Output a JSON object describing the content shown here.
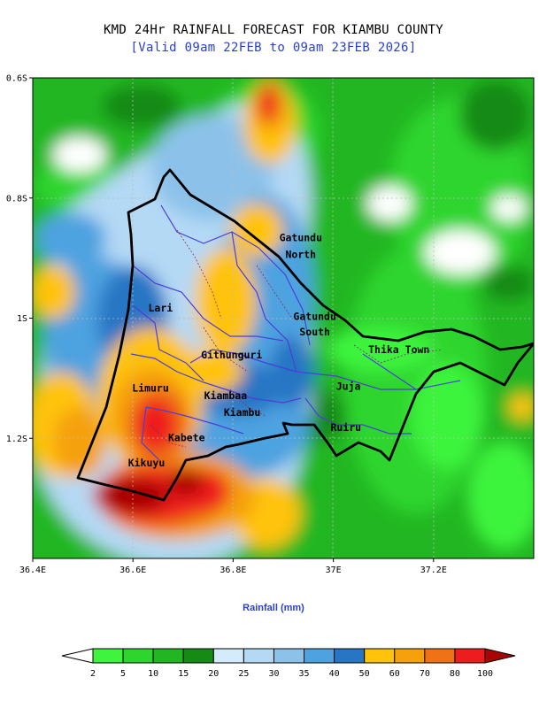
{
  "title": "KMD 24Hr RAINFALL FORECAST FOR KIAMBU COUNTY",
  "subtitle": "[Valid 09am 22FEB to 09am 23FEB 2026]",
  "legend_title": "Rainfall (mm)",
  "axes": {
    "x_ticks": [
      {
        "value": 36.4,
        "label": "36.4E"
      },
      {
        "value": 36.6,
        "label": "36.6E"
      },
      {
        "value": 36.8,
        "label": "36.8E"
      },
      {
        "value": 37.0,
        "label": "37E"
      },
      {
        "value": 37.2,
        "label": "37.2E"
      }
    ],
    "y_ticks": [
      {
        "value": -0.6,
        "label": "0.6S"
      },
      {
        "value": -0.8,
        "label": "0.8S"
      },
      {
        "value": -1.0,
        "label": "1S"
      },
      {
        "value": -1.2,
        "label": "1.2S"
      }
    ],
    "lon_range": [
      36.4,
      37.4
    ],
    "lat_range": [
      -1.4,
      -0.6
    ]
  },
  "legend": {
    "breaks": [
      "2",
      "5",
      "10",
      "15",
      "20",
      "25",
      "30",
      "35",
      "40",
      "50",
      "60",
      "70",
      "80",
      "100"
    ],
    "colors": [
      "#ffffff",
      "#3ef43e",
      "#2ed52e",
      "#22b722",
      "#158a15",
      "#d4ebfb",
      "#b4d9f5",
      "#8cc2ea",
      "#4ea2e0",
      "#2776c4",
      "#ffc30a",
      "#f5a10c",
      "#ef7216",
      "#ee1d1d",
      "#a90505"
    ]
  },
  "places": [
    {
      "name": "Gatundu",
      "lon": 36.935,
      "lat": -0.872
    },
    {
      "name": "North",
      "lon": 36.935,
      "lat": -0.9
    },
    {
      "name": "Lari",
      "lon": 36.655,
      "lat": -0.989
    },
    {
      "name": "Gatundu",
      "lon": 36.963,
      "lat": -1.003
    },
    {
      "name": "South",
      "lon": 36.963,
      "lat": -1.029
    },
    {
      "name": "Githunguri",
      "lon": 36.797,
      "lat": -1.067
    },
    {
      "name": "Thika Town",
      "lon": 37.131,
      "lat": -1.058
    },
    {
      "name": "Limuru",
      "lon": 36.635,
      "lat": -1.122
    },
    {
      "name": "Kiambaa",
      "lon": 36.785,
      "lat": -1.135
    },
    {
      "name": "Juja",
      "lon": 37.03,
      "lat": -1.119
    },
    {
      "name": "Kiambu",
      "lon": 36.818,
      "lat": -1.163
    },
    {
      "name": "Ruiru",
      "lon": 37.025,
      "lat": -1.188
    },
    {
      "name": "Kabete",
      "lon": 36.707,
      "lat": -1.205
    },
    {
      "name": "Kikuyu",
      "lon": 36.627,
      "lat": -1.247
    }
  ]
}
